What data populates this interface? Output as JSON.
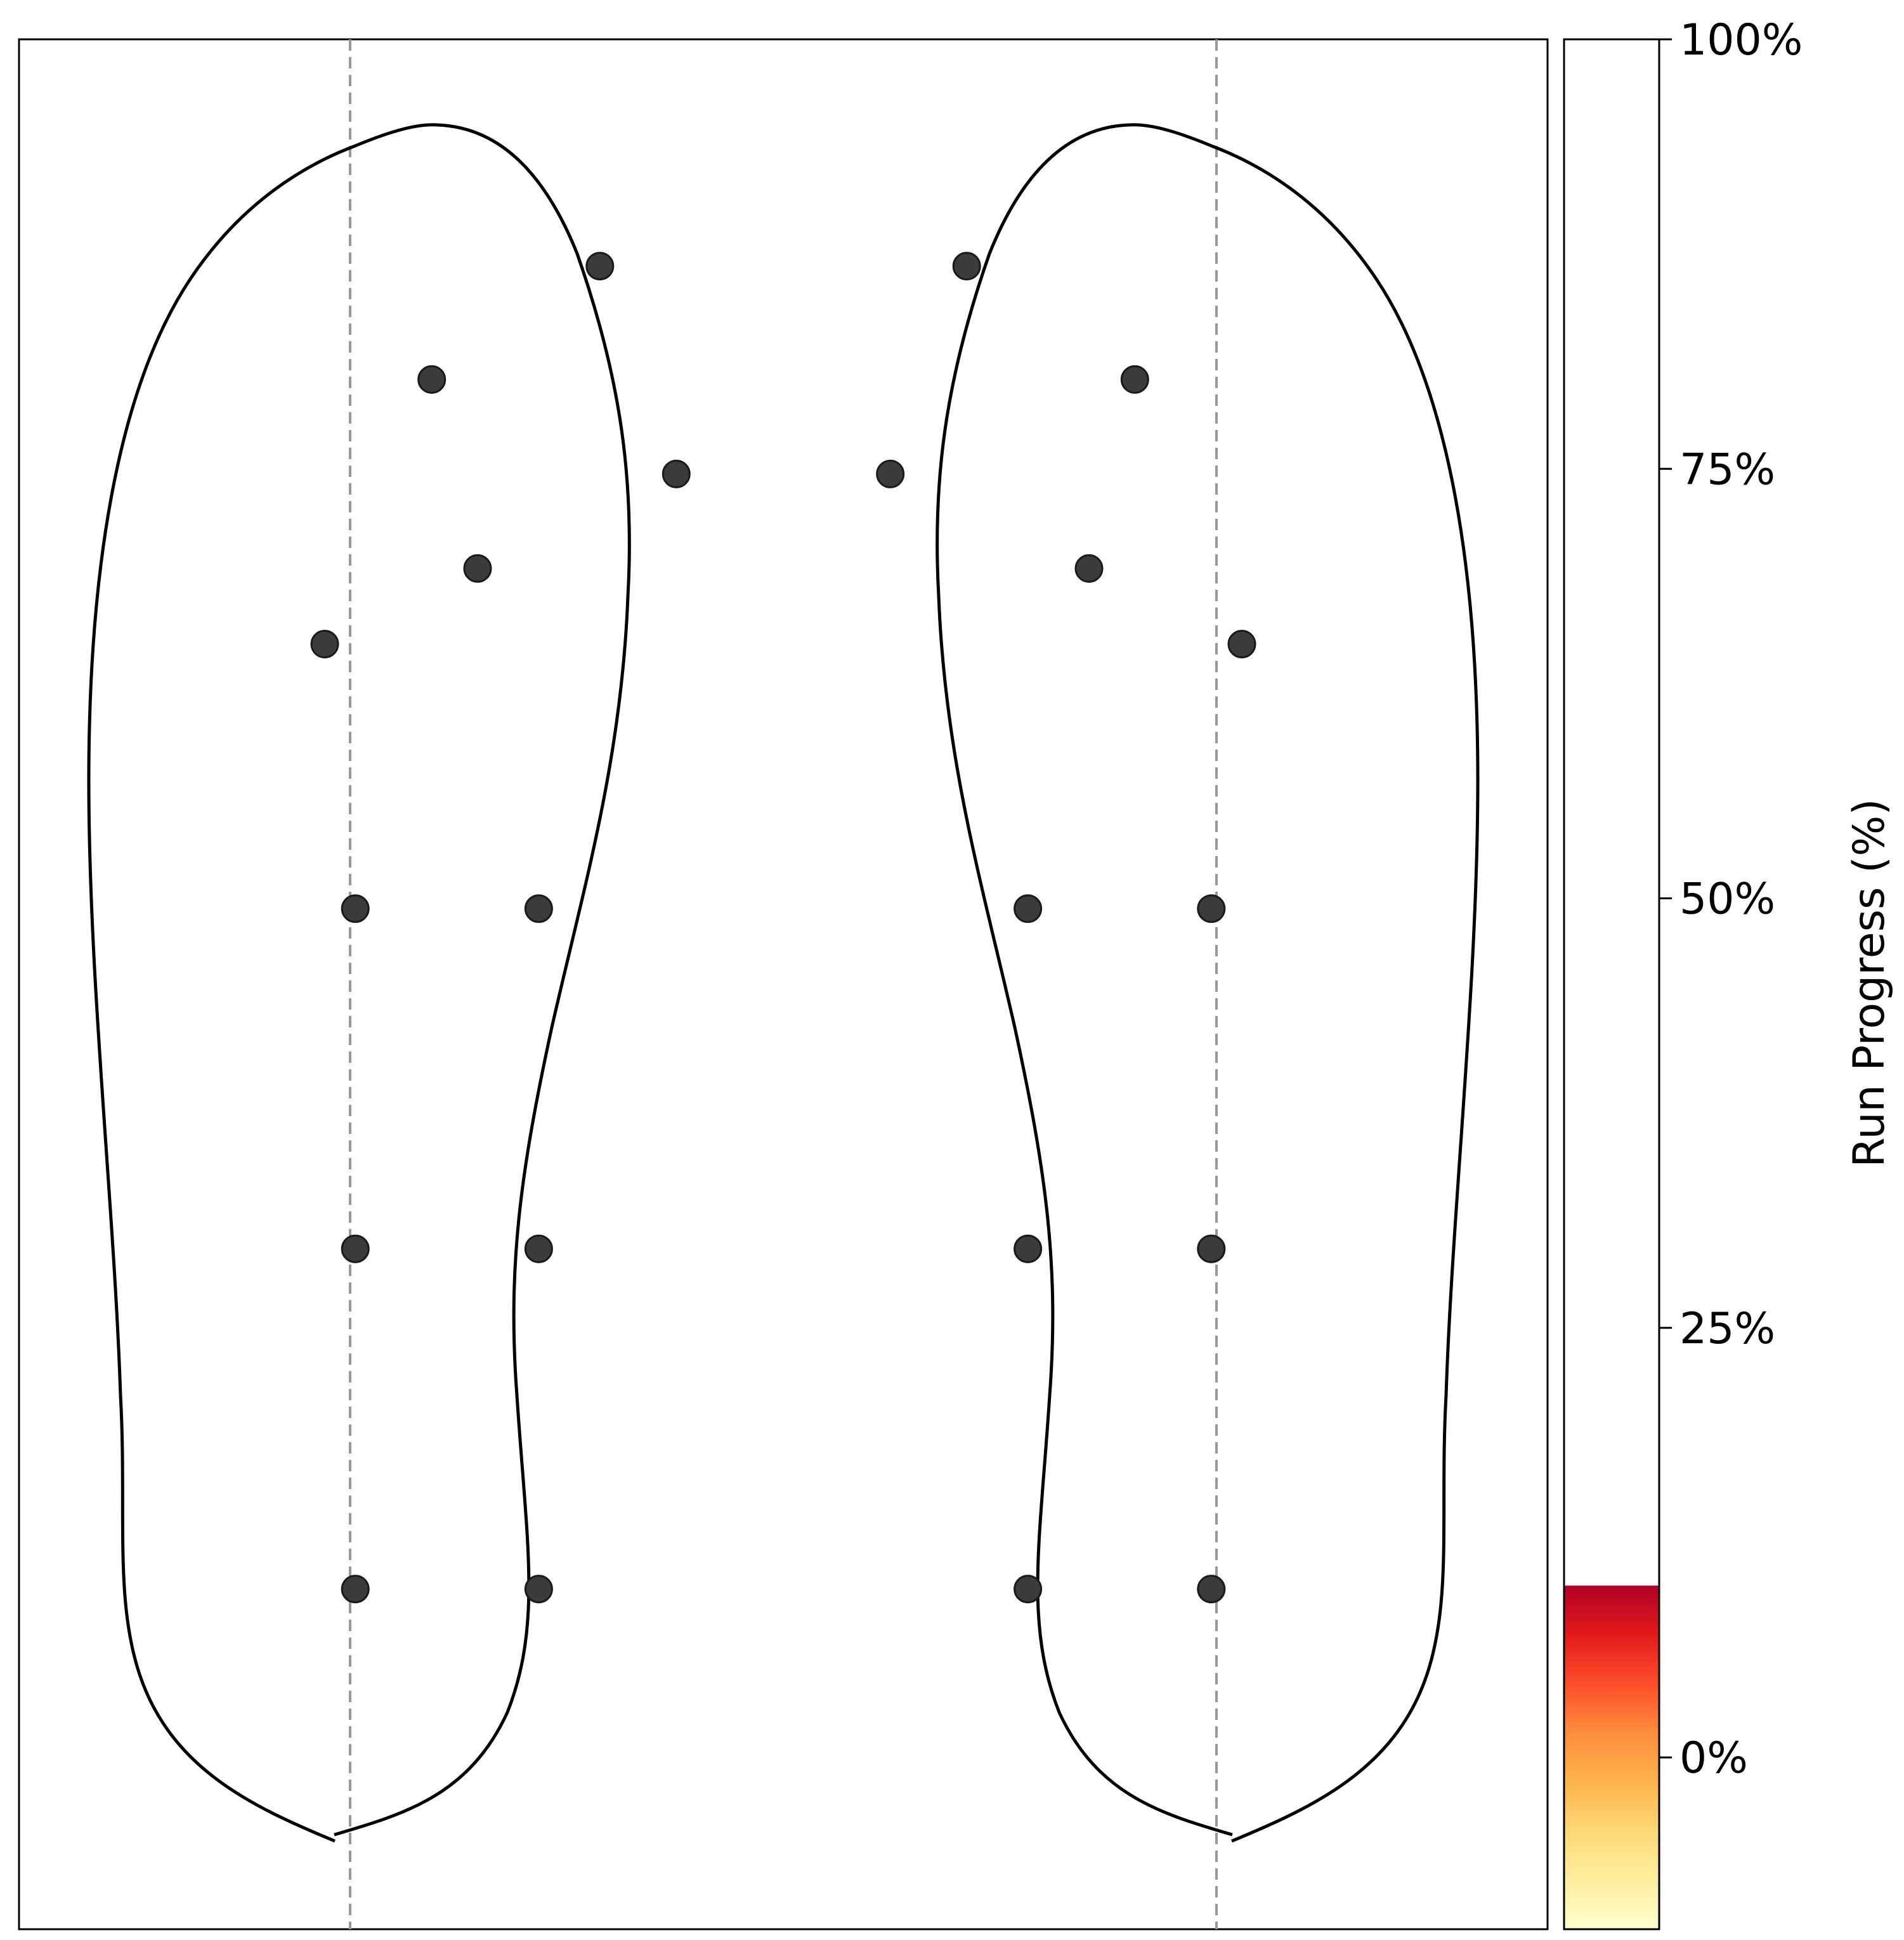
{
  "chart_data": {
    "type": "scatter",
    "title": "",
    "xlabel": "",
    "ylabel": "",
    "grid": false,
    "colors": {
      "frame": "#000000",
      "outline": "#000000",
      "sensor": "#3b3b3b",
      "midline": "#999999"
    },
    "feet": [
      {
        "side": "left",
        "sensors": [
          [
            0.38,
            0.88
          ],
          [
            0.27,
            0.82
          ],
          [
            0.43,
            0.77
          ],
          [
            0.3,
            0.72
          ],
          [
            0.2,
            0.68
          ],
          [
            0.22,
            0.54
          ],
          [
            0.34,
            0.54
          ],
          [
            0.22,
            0.36
          ],
          [
            0.34,
            0.36
          ],
          [
            0.22,
            0.18
          ],
          [
            0.34,
            0.18
          ]
        ]
      },
      {
        "side": "right",
        "sensors": [
          [
            0.62,
            0.88
          ],
          [
            0.73,
            0.82
          ],
          [
            0.57,
            0.77
          ],
          [
            0.7,
            0.72
          ],
          [
            0.8,
            0.68
          ],
          [
            0.66,
            0.54
          ],
          [
            0.78,
            0.54
          ],
          [
            0.66,
            0.36
          ],
          [
            0.78,
            0.36
          ],
          [
            0.66,
            0.18
          ],
          [
            0.78,
            0.18
          ]
        ]
      }
    ],
    "colorbar": {
      "label": "Run Progress (%)",
      "ticks": [
        "0%",
        "25%",
        "50%",
        "75%",
        "100%"
      ],
      "tick_values": [
        0,
        25,
        50,
        75,
        100
      ],
      "range": [
        -10,
        100
      ],
      "filled_to": 10,
      "colormap": [
        "#ffffcc",
        "#ffeda0",
        "#fed976",
        "#feb24c",
        "#fd8d3c",
        "#fc4e2a",
        "#e31a1c",
        "#b10026"
      ]
    }
  }
}
